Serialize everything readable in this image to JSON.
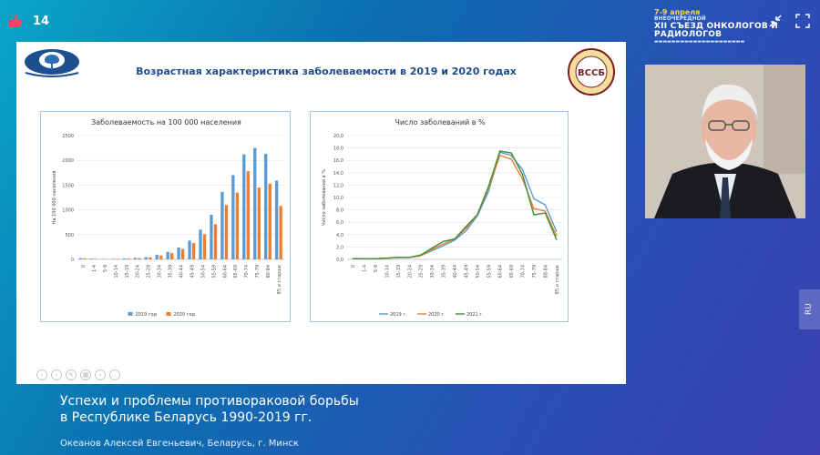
{
  "header": {
    "like_count": "14",
    "event": {
      "dates": "7-9 апреля",
      "kind": "ВНЕОЧЕРЕДНОЙ",
      "title": "XII СЪЕЗД ОНКОЛОГОВ И РАДИОЛОГОВ"
    }
  },
  "slide": {
    "title": "Возрастная характеристика заболеваемости в 2019 и 2020 годах",
    "logo_right_text": "ВССБ",
    "colors": {
      "series_2019": "#5b9bd5",
      "series_2020": "#ed7d31",
      "series_2021": "#3f8f3a",
      "title": "#1f4b8a"
    }
  },
  "chart_data": [
    {
      "type": "bar",
      "title": "Заболеваемость на 100 000 населения",
      "ylabel": "На 100 000 населения",
      "xlabel": "",
      "ylim": [
        0,
        2500
      ],
      "yticks": [
        "0",
        "500",
        "1000",
        "1500",
        "2000",
        "2500"
      ],
      "categories": [
        "0",
        "1-4",
        "5-9",
        "10-14",
        "15-19",
        "20-24",
        "25-29",
        "30-34",
        "35-39",
        "40-44",
        "45-49",
        "50-54",
        "55-59",
        "60-64",
        "65-69",
        "70-74",
        "75-79",
        "80-84",
        "85 и старше"
      ],
      "series": [
        {
          "name": "2019 год",
          "values": [
            25,
            15,
            10,
            12,
            18,
            30,
            45,
            90,
            150,
            240,
            380,
            600,
            900,
            1360,
            1700,
            2120,
            2250,
            2130,
            1590
          ]
        },
        {
          "name": "2020 год",
          "values": [
            20,
            12,
            8,
            10,
            15,
            25,
            38,
            78,
            128,
            210,
            330,
            510,
            710,
            1100,
            1350,
            1780,
            1450,
            1530,
            1080
          ]
        }
      ],
      "legend": "bottom"
    },
    {
      "type": "line",
      "title": "Число заболеваний в %",
      "ylabel": "Число заболеваний в %",
      "xlabel": "",
      "ylim": [
        0,
        20
      ],
      "yticks": [
        "0,0",
        "2,0",
        "4,0",
        "6,0",
        "8,0",
        "10,0",
        "12,0",
        "14,0",
        "16,0",
        "18,0",
        "20,0"
      ],
      "categories": [
        "0",
        "1-4",
        "5-9",
        "10-14",
        "15-19",
        "20-24",
        "25-29",
        "30-34",
        "35-39",
        "40-44",
        "45-49",
        "50-54",
        "55-59",
        "60-64",
        "65-69",
        "70-74",
        "75-79",
        "80-84",
        "85 и старше"
      ],
      "series": [
        {
          "name": "2019 г.",
          "values": [
            0.1,
            0.1,
            0.1,
            0.2,
            0.3,
            0.3,
            0.6,
            1.4,
            2.2,
            3.1,
            4.6,
            7.0,
            11.0,
            17.3,
            16.8,
            14.5,
            9.8,
            8.8,
            4.5
          ]
        },
        {
          "name": "2020 г.",
          "values": [
            0.1,
            0.1,
            0.1,
            0.2,
            0.3,
            0.3,
            0.6,
            1.6,
            2.5,
            3.3,
            5.0,
            7.2,
            11.5,
            16.8,
            16.2,
            13.0,
            8.2,
            7.8,
            3.8
          ]
        },
        {
          "name": "2021 г.",
          "values": [
            0.1,
            0.1,
            0.1,
            0.2,
            0.3,
            0.3,
            0.7,
            1.8,
            2.9,
            3.3,
            5.3,
            7.2,
            11.8,
            17.5,
            17.2,
            13.7,
            7.2,
            7.5,
            3.2
          ]
        }
      ],
      "legend": "bottom"
    }
  ],
  "caption": {
    "line1": "Успехи и проблемы противораковой борьбы",
    "line2": "в Республике Беларусь 1990-2019 гг.",
    "author": "Океанов Алексей Евгеньевич, Беларусь, г. Минск"
  },
  "lang_badge": "RU",
  "icons": [
    "thumbs-up-icon",
    "shrink-icon",
    "fullscreen-icon",
    "tree-logo-icon",
    "seal-logo-icon"
  ]
}
